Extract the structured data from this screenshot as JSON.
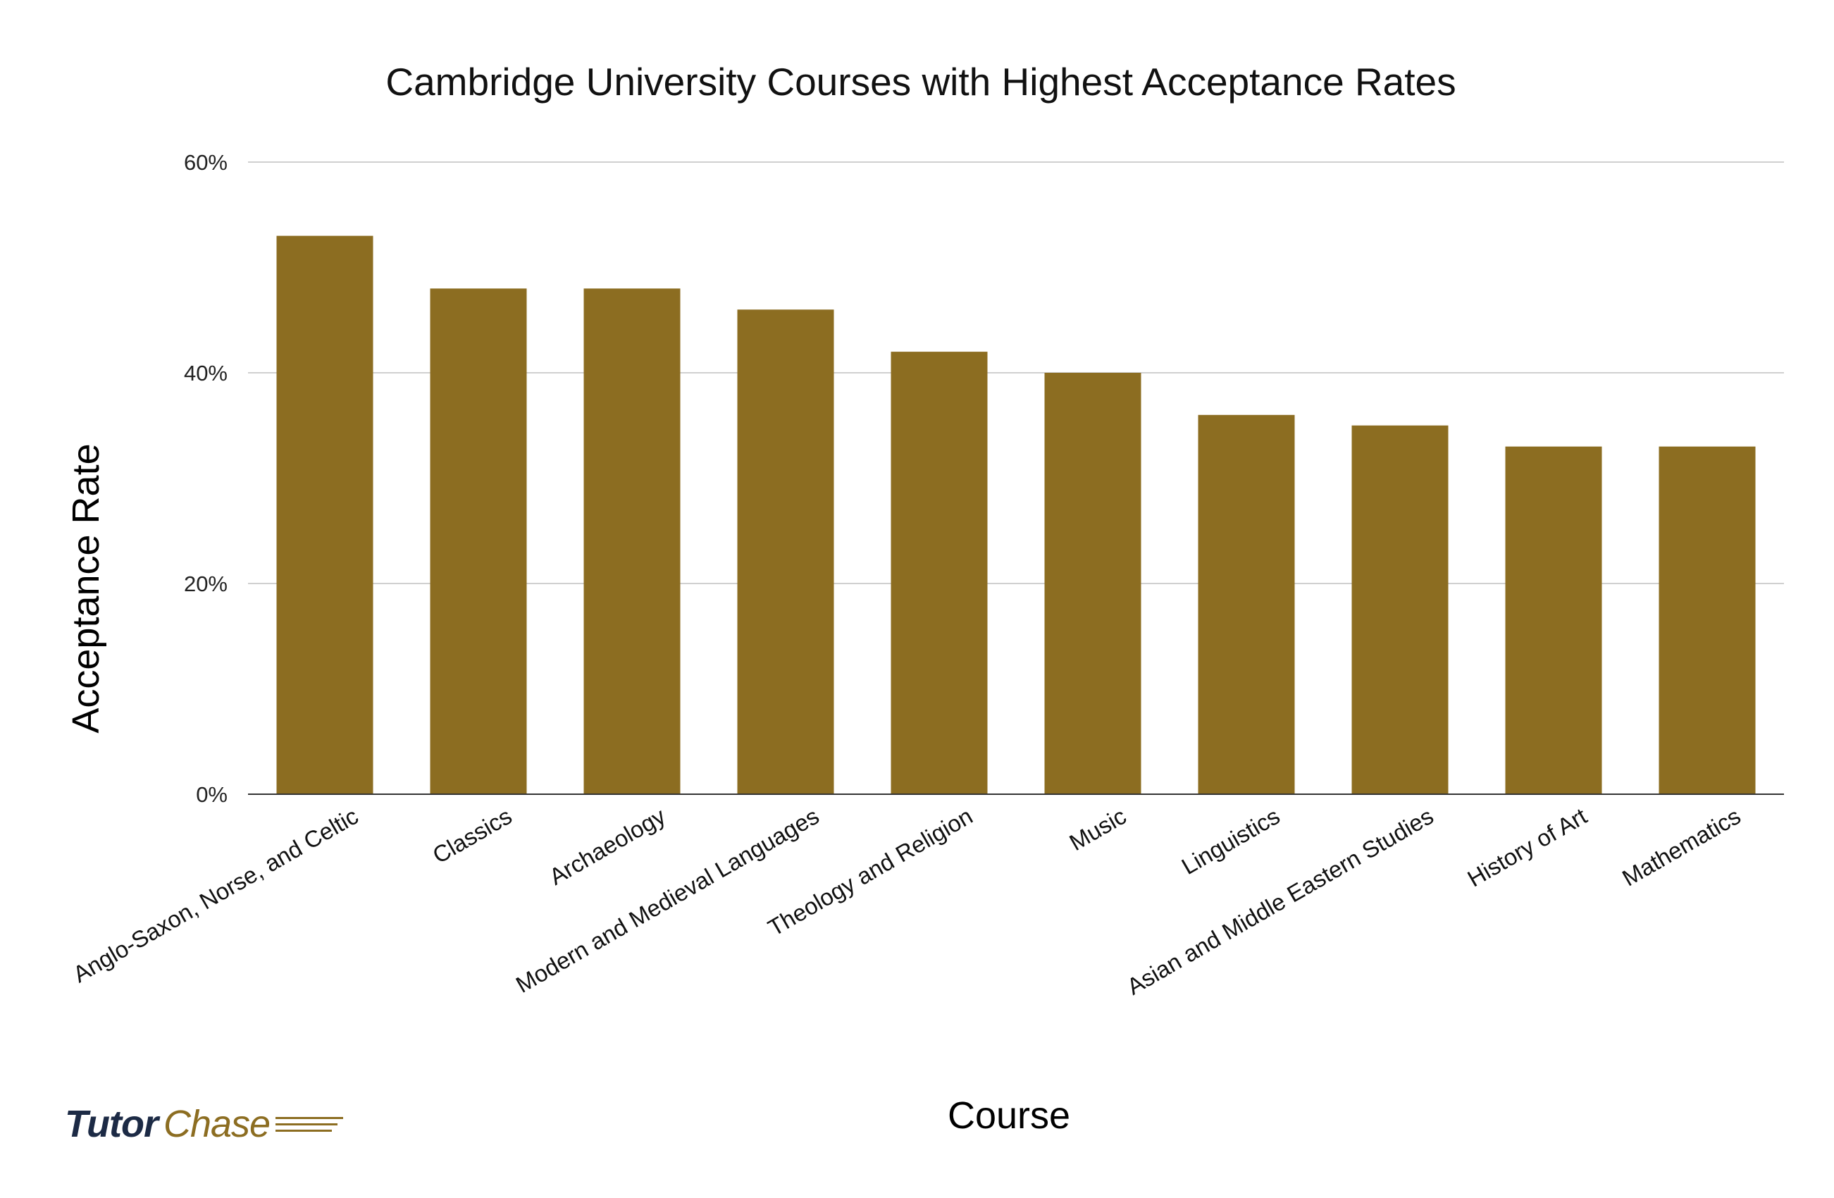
{
  "colors": {
    "bar": "#8c6d21",
    "grid": "#d0d0d0",
    "axis": "#333333",
    "logo_dark": "#1c2a45",
    "logo_gold": "#8c6d21"
  },
  "logo": {
    "part1": "Tutor",
    "part2": "Chase"
  },
  "chart_data": {
    "type": "bar",
    "title": "Cambridge University Courses with Highest Acceptance Rates",
    "xlabel": "Course",
    "ylabel": "Acceptance Rate",
    "categories": [
      "Anglo-Saxon, Norse, and Celtic",
      "Classics",
      "Archaeology",
      "Modern and Medieval Languages",
      "Theology and Religion",
      "Music",
      "Linguistics",
      "Asian and Middle Eastern Studies",
      "History of Art",
      "Mathematics"
    ],
    "values": [
      53,
      48,
      48,
      46,
      42,
      40,
      36,
      35,
      33,
      33
    ],
    "ylim": [
      0,
      60
    ],
    "yticks": [
      0,
      20,
      40,
      60
    ],
    "ytick_labels": [
      "0%",
      "20%",
      "40%",
      "60%"
    ],
    "grid": true,
    "legend": "none"
  }
}
